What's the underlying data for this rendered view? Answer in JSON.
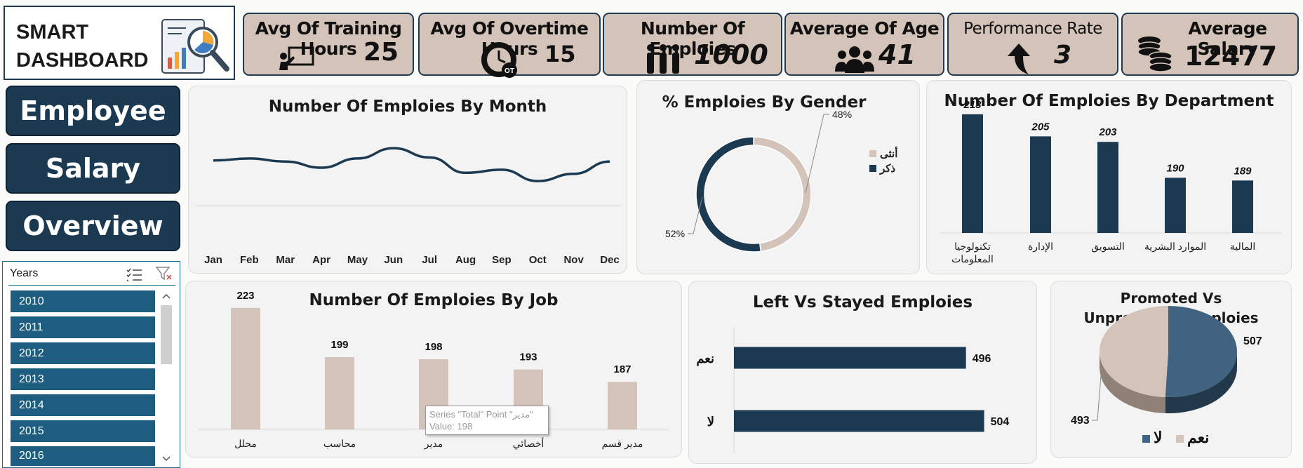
{
  "logo": {
    "line1": "SMART",
    "line2": "DASHBOARD",
    "icon": "report-magnifier-icon"
  },
  "kpis": [
    {
      "title": "Avg Of Training Hours",
      "value": "25",
      "icon": "teaching-board-icon"
    },
    {
      "title": "Avg Of Overtime Hours",
      "value": "15",
      "icon": "overtime-clock-icon"
    },
    {
      "title": "Number Of Emploies",
      "value": "1000",
      "icon": "people-group-icon"
    },
    {
      "title": "Average Of Age",
      "value": "41",
      "icon": "users-icon"
    },
    {
      "title": "Performance Rate",
      "value": "3",
      "icon": "up-arrow-icon"
    },
    {
      "title": "Average Salary",
      "value": "12477",
      "icon": "coins-icon"
    }
  ],
  "nav": {
    "employee": "Employee",
    "salary": "Salary",
    "overview": "Overview"
  },
  "slicer": {
    "title": "Years",
    "items": [
      "2010",
      "2011",
      "2012",
      "2013",
      "2014",
      "2015",
      "2016"
    ]
  },
  "tooltip": {
    "line1": "Series \"Total\" Point \"مدير\"",
    "line2": "Value: 198"
  },
  "colors": {
    "navy": "#1b3a52",
    "beige": "#d3c3b8",
    "slicer": "#1c5d80"
  },
  "chart_data": [
    {
      "id": "month",
      "type": "line",
      "title": "Number Of Emploies By Month",
      "categories": [
        "Jan",
        "Feb",
        "Mar",
        "Apr",
        "May",
        "Jun",
        "Jul",
        "Aug",
        "Sep",
        "Oct",
        "Nov",
        "Dec"
      ],
      "values": [
        85,
        87,
        84,
        78,
        87,
        97,
        88,
        73,
        76,
        65,
        72,
        84
      ],
      "ylim": [
        0,
        130
      ],
      "color": "#1b3a52"
    },
    {
      "id": "gender",
      "type": "pie",
      "title": "% Emploies By Gender",
      "labels": [
        "أنثى",
        "ذكر"
      ],
      "values": [
        48,
        52
      ],
      "data_labels": [
        "48%",
        "52%"
      ],
      "colors": [
        "#d3c3b8",
        "#1b3a52"
      ],
      "legend": "right"
    },
    {
      "id": "department",
      "type": "bar",
      "title": "Number Of Emploies By Department",
      "categories": [
        "تكنولوجيا المعلومات",
        "الإدارة",
        "التسويق",
        "الموارد البشرية",
        "المالية"
      ],
      "values": [
        213,
        205,
        203,
        190,
        189
      ],
      "ylim": [
        170,
        215
      ],
      "color": "#1b3a52"
    },
    {
      "id": "job",
      "type": "bar",
      "title": "Number Of Emploies By Job",
      "categories": [
        "محلل",
        "محاسب",
        "مدير",
        "أخصائي",
        "مدير قسم"
      ],
      "values": [
        223,
        199,
        198,
        193,
        187
      ],
      "ylim": [
        170,
        225
      ],
      "color": "#d3c3b8"
    },
    {
      "id": "left",
      "type": "bar",
      "orientation": "horizontal",
      "title": "Left Vs Stayed Emploies",
      "categories": [
        "نعم",
        "لا"
      ],
      "values": [
        496,
        504
      ],
      "xlim": [
        400,
        510
      ],
      "color": "#1b3a52"
    },
    {
      "id": "promoted",
      "type": "pie",
      "title": "Promoted Vs Unpromoted Emploies",
      "labels": [
        "لا",
        "نعم"
      ],
      "values": [
        507,
        493
      ],
      "colors": [
        "#3f6380",
        "#d3c3b8"
      ],
      "legend": "bottom"
    }
  ]
}
